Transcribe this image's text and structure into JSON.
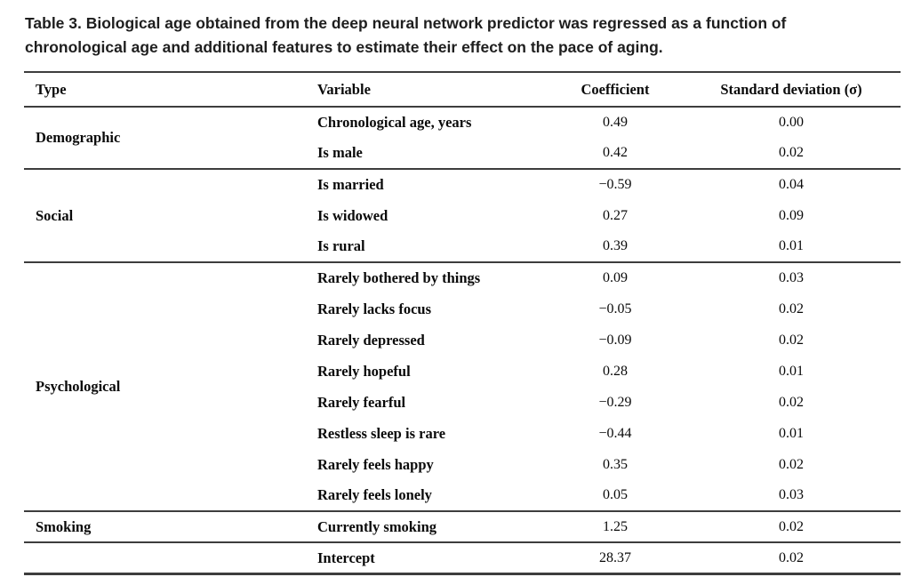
{
  "title": "Table 3. Biological age obtained from the deep neural network predictor was regressed as a function of chronological age and additional features to estimate their effect on the pace of aging.",
  "table": {
    "headers": [
      "Type",
      "Variable",
      "Coefficient",
      "Standard deviation (σ)"
    ],
    "groups": [
      {
        "type": "Demographic",
        "rows": [
          {
            "variable": "Chronological age, years",
            "coefficient": "0.49",
            "std": "0.00"
          },
          {
            "variable": "Is male",
            "coefficient": "0.42",
            "std": "0.02"
          }
        ]
      },
      {
        "type": "Social",
        "rows": [
          {
            "variable": "Is married",
            "coefficient": "−0.59",
            "std": "0.04"
          },
          {
            "variable": "Is widowed",
            "coefficient": "0.27",
            "std": "0.09"
          },
          {
            "variable": "Is rural",
            "coefficient": "0.39",
            "std": "0.01"
          }
        ]
      },
      {
        "type": "Psychological",
        "rows": [
          {
            "variable": "Rarely bothered by things",
            "coefficient": "0.09",
            "std": "0.03"
          },
          {
            "variable": "Rarely lacks focus",
            "coefficient": "−0.05",
            "std": "0.02"
          },
          {
            "variable": "Rarely depressed",
            "coefficient": "−0.09",
            "std": "0.02"
          },
          {
            "variable": "Rarely hopeful",
            "coefficient": "0.28",
            "std": "0.01"
          },
          {
            "variable": "Rarely fearful",
            "coefficient": "−0.29",
            "std": "0.02"
          },
          {
            "variable": "Restless sleep is rare",
            "coefficient": "−0.44",
            "std": "0.01"
          },
          {
            "variable": "Rarely feels happy",
            "coefficient": "0.35",
            "std": "0.02"
          },
          {
            "variable": "Rarely feels lonely",
            "coefficient": "0.05",
            "std": "0.03"
          }
        ]
      },
      {
        "type": "Smoking",
        "rows": [
          {
            "variable": "Currently smoking",
            "coefficient": "1.25",
            "std": "0.02"
          }
        ]
      },
      {
        "type": "",
        "rows": [
          {
            "variable": "Intercept",
            "coefficient": "28.37",
            "std": "0.02"
          }
        ]
      }
    ]
  }
}
